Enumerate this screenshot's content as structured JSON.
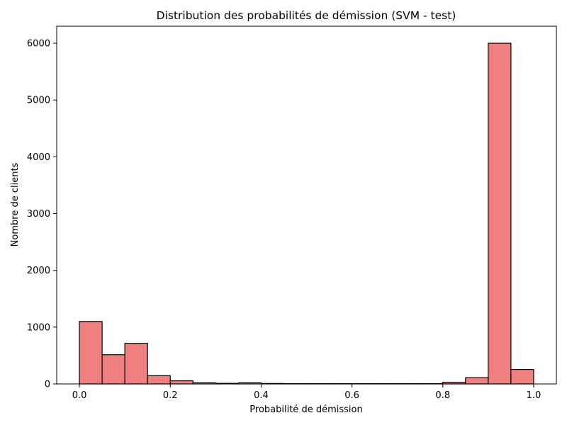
{
  "chart_data": {
    "type": "bar",
    "title": "Distribution des probabilités de démission (SVM - test)",
    "xlabel": "Probabilité de démission",
    "ylabel": "Nombre de clients",
    "xlim": [
      -0.05,
      1.05
    ],
    "ylim": [
      0,
      6300
    ],
    "xticks": [
      "0.0",
      "0.2",
      "0.4",
      "0.6",
      "0.8",
      "1.0"
    ],
    "yticks": [
      "0",
      "1000",
      "2000",
      "3000",
      "4000",
      "5000",
      "6000"
    ],
    "bin_edges": [
      0.0,
      0.05,
      0.1,
      0.15,
      0.2,
      0.25,
      0.3,
      0.35,
      0.4,
      0.45,
      0.5,
      0.55,
      0.6,
      0.65,
      0.7,
      0.75,
      0.8,
      0.85,
      0.9,
      0.95,
      1.0
    ],
    "values": [
      1100,
      515,
      715,
      145,
      55,
      20,
      10,
      20,
      8,
      5,
      5,
      5,
      5,
      5,
      5,
      5,
      30,
      110,
      6000,
      255
    ],
    "grid": false,
    "bar_color": "#f08080",
    "edge_color": "#000000"
  }
}
